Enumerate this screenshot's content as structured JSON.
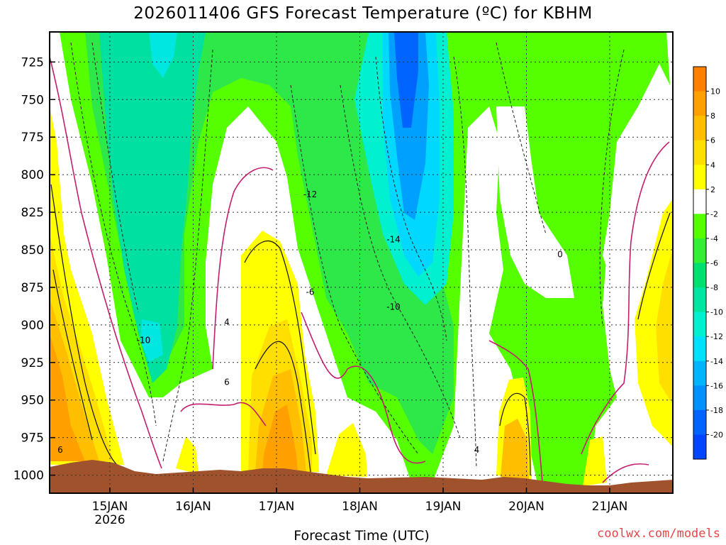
{
  "title": "2026011406 GFS Forecast Temperature (ºC) for KBHM",
  "credit": "coolwx.com/models",
  "chart_data": {
    "type": "heatmap",
    "title": "2026011406 GFS Forecast Temperature (ºC) for KBHM",
    "xlabel": "Forecast Time (UTC)",
    "ylabel": "",
    "x_ticks": [
      "15JAN",
      "16JAN",
      "17JAN",
      "18JAN",
      "19JAN",
      "20JAN",
      "21JAN"
    ],
    "x_subtick": "2026",
    "y_ticks": [
      725,
      750,
      775,
      800,
      825,
      850,
      875,
      900,
      925,
      950,
      975,
      1000
    ],
    "ylim": [
      1012,
      705
    ],
    "grid": true,
    "colorbar": {
      "labels": [
        "10",
        "8",
        "6",
        "4",
        "2",
        "-2",
        "-4",
        "-6",
        "-8",
        "-10",
        "-12",
        "-14",
        "-16",
        "-18",
        "-20"
      ],
      "colors": [
        "#ff7f00",
        "#ff9f00",
        "#ffbf00",
        "#ffdf00",
        "#ffff00",
        "#ffffff",
        "#55ff00",
        "#33ee33",
        "#00e070",
        "#00e6a0",
        "#00f0d0",
        "#00e0ff",
        "#00b4ff",
        "#0090ff",
        "#0064ff",
        "#0046ff"
      ]
    },
    "contour_labels": [
      {
        "t": "15JAN",
        "p": 985,
        "v": "6"
      },
      {
        "t": "16JAN",
        "p": 912,
        "v": "-10"
      },
      {
        "t": "17JAN",
        "p": 940,
        "v": "6"
      },
      {
        "t": "17JAN",
        "p": 900,
        "v": "4"
      },
      {
        "t": "18JAN",
        "p": 880,
        "v": "-6"
      },
      {
        "t": "18JAN",
        "p": 815,
        "v": "-12"
      },
      {
        "t": "19JAN",
        "p": 845,
        "v": "-14"
      },
      {
        "t": "19JAN",
        "p": 890,
        "v": "-10"
      },
      {
        "t": "20JAN",
        "p": 985,
        "v": "4"
      },
      {
        "t": "21JAN",
        "p": 855,
        "v": "0"
      }
    ]
  }
}
